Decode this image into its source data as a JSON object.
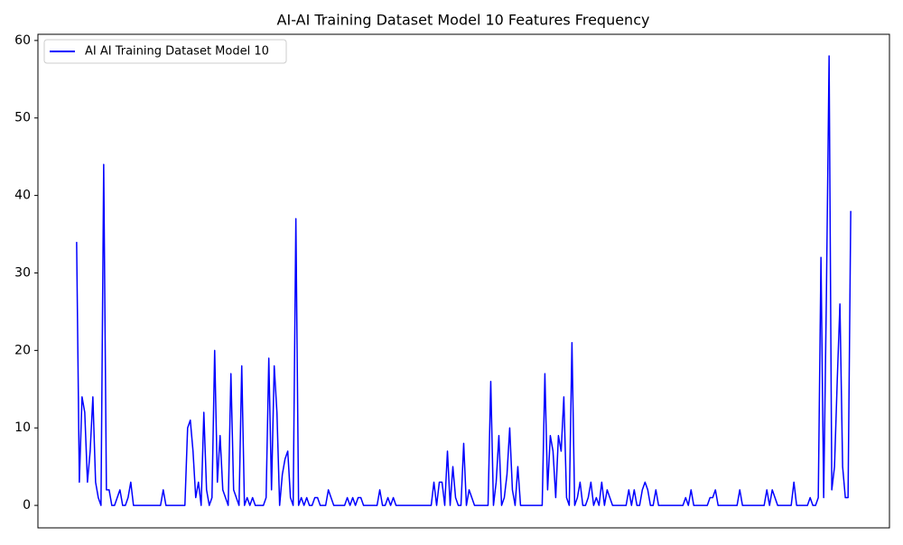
{
  "chart_data": {
    "type": "line",
    "title": "AI-AI Training Dataset Model 10 Features Frequency",
    "ylim": [
      -2.9,
      60.8
    ],
    "yticks": [
      0,
      10,
      20,
      30,
      40,
      50,
      60
    ],
    "grid": false,
    "legend": "upper left",
    "series": [
      {
        "name": "AI AI Training Dataset Model 10",
        "color": "#0000ff",
        "values": [
          34,
          3,
          14,
          12,
          3,
          7,
          14,
          3,
          1,
          0,
          44,
          2,
          2,
          0,
          0,
          1,
          2,
          0,
          0,
          1,
          3,
          0,
          0,
          0,
          0,
          0,
          0,
          0,
          0,
          0,
          0,
          0,
          2,
          0,
          0,
          0,
          0,
          0,
          0,
          0,
          0,
          10,
          11,
          7,
          1,
          3,
          0,
          12,
          2,
          0,
          1,
          20,
          3,
          9,
          2,
          1,
          0,
          17,
          2,
          1,
          0,
          18,
          0,
          1,
          0,
          1,
          0,
          0,
          0,
          0,
          1,
          19,
          2,
          18,
          12,
          0,
          4,
          6,
          7,
          1,
          0,
          37,
          0,
          1,
          0,
          1,
          0,
          0,
          1,
          1,
          0,
          0,
          0,
          2,
          1,
          0,
          0,
          0,
          0,
          0,
          1,
          0,
          1,
          0,
          1,
          1,
          0,
          0,
          0,
          0,
          0,
          0,
          2,
          0,
          0,
          1,
          0,
          1,
          0,
          0,
          0,
          0,
          0,
          0,
          0,
          0,
          0,
          0,
          0,
          0,
          0,
          0,
          3,
          0,
          3,
          3,
          0,
          7,
          0,
          5,
          1,
          0,
          0,
          8,
          0,
          2,
          1,
          0,
          0,
          0,
          0,
          0,
          0,
          16,
          0,
          3,
          9,
          0,
          1,
          4,
          10,
          2,
          0,
          5,
          0,
          0,
          0,
          0,
          0,
          0,
          0,
          0,
          0,
          17,
          2,
          9,
          7,
          1,
          9,
          7,
          14,
          1,
          0,
          21,
          0,
          1,
          3,
          0,
          0,
          1,
          3,
          0,
          1,
          0,
          3,
          0,
          2,
          1,
          0,
          0,
          0,
          0,
          0,
          0,
          2,
          0,
          2,
          0,
          0,
          2,
          3,
          2,
          0,
          0,
          2,
          0,
          0,
          0,
          0,
          0,
          0,
          0,
          0,
          0,
          0,
          1,
          0,
          2,
          0,
          0,
          0,
          0,
          0,
          0,
          1,
          1,
          2,
          0,
          0,
          0,
          0,
          0,
          0,
          0,
          0,
          2,
          0,
          0,
          0,
          0,
          0,
          0,
          0,
          0,
          0,
          2,
          0,
          2,
          1,
          0,
          0,
          0,
          0,
          0,
          0,
          3,
          0,
          0,
          0,
          0,
          0,
          1,
          0,
          0,
          1,
          32,
          1,
          27,
          58,
          2,
          5,
          16,
          26,
          5,
          1,
          1,
          38
        ]
      }
    ]
  }
}
